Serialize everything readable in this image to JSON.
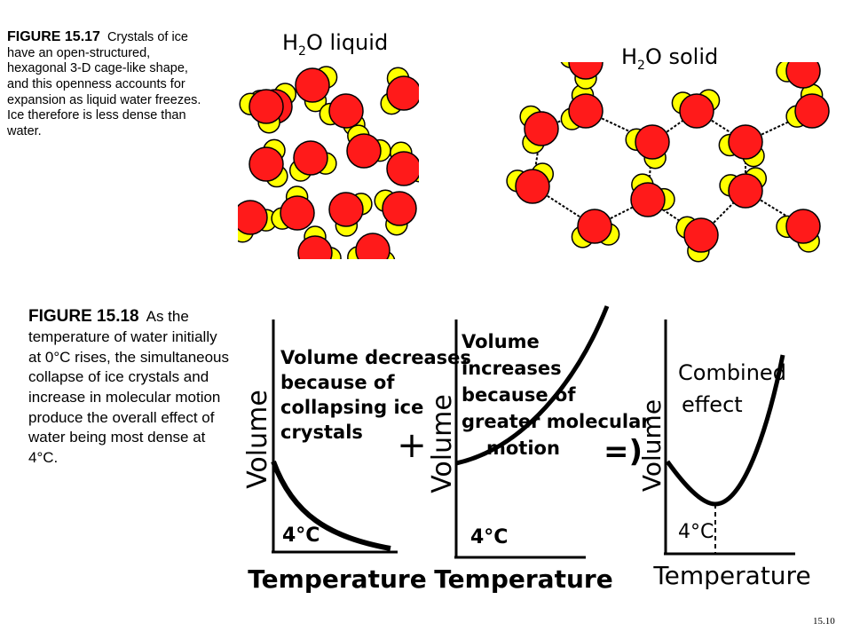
{
  "figure_15_17": {
    "number": "FIGURE 15.17",
    "caption": "Crystals of ice have an open-structured, hexagonal 3-D cage-like shape, and this openness accounts for expansion as liquid water freezes. Ice therefore is less dense than water.",
    "liquid_label_pre": "H",
    "liquid_label_sub": "2",
    "liquid_label_post": "O  liquid",
    "solid_label_pre": "H",
    "solid_label_sub": "2",
    "solid_label_post": "O  solid"
  },
  "figure_15_18": {
    "number": "FIGURE 15.18",
    "caption": "As the temperature of water initially at 0°C rises, the simultaneous collapse of ice crystals and increase in molecular motion produce the overall effect of water being most dense at 4°C."
  },
  "graphs": [
    {
      "ylabel": "Volume",
      "xlabel": "Temperature",
      "temp_label": "4°C",
      "annotation": [
        "Volume decreases",
        "because of",
        "collapsing ice",
        "crystals"
      ]
    },
    {
      "ylabel": "Volume",
      "xlabel": "Temperature",
      "temp_label": "4°C",
      "annotation": [
        "Volume",
        "increases",
        "because of",
        "greater molecular",
        "motion"
      ]
    },
    {
      "ylabel": "Volume",
      "xlabel": "Temperature",
      "temp_label": "4°C",
      "annotation": [
        "Combined",
        "effect"
      ]
    }
  ],
  "operators": {
    "plus": "+",
    "implies": "=)"
  },
  "slide_number": "15.10",
  "colors": {
    "oxygen": "#ff1a1a",
    "hydrogen": "#ffff00",
    "outline": "#000000"
  }
}
